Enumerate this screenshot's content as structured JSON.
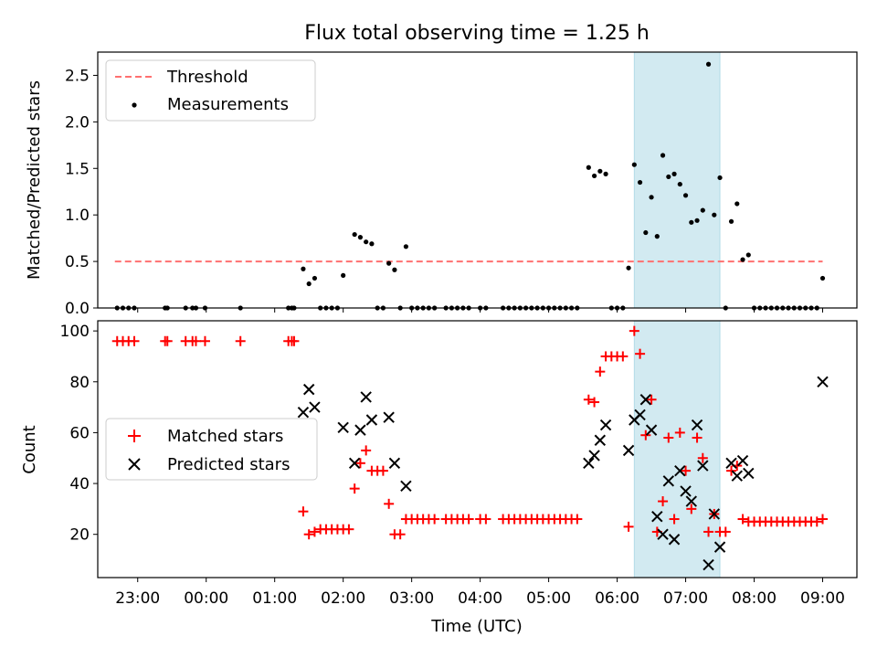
{
  "title": "Flux total observing time = 1.25 h",
  "xlabel": "Time (UTC)",
  "chart_data": [
    {
      "type": "scatter",
      "panel": "top",
      "ylabel": "Matched/Predicted stars",
      "ylim": [
        0,
        2.75
      ],
      "yticks": [
        0.0,
        0.5,
        1.0,
        1.5,
        2.0,
        2.5
      ],
      "ytick_labels": [
        "0.0",
        "0.5",
        "1.0",
        "1.5",
        "2.0",
        "2.5"
      ],
      "xlim": [
        "22:25",
        "09:30"
      ],
      "xticks": [
        "23:00",
        "00:00",
        "01:00",
        "02:00",
        "03:00",
        "04:00",
        "05:00",
        "06:00",
        "07:00",
        "08:00",
        "09:00"
      ],
      "shaded_span": [
        "06:15",
        "07:30"
      ],
      "legend_position": "upper-left",
      "threshold": {
        "name": "Threshold",
        "y": 0.5,
        "x_range": [
          "22:40",
          "09:00"
        ],
        "color": "#ff7070"
      },
      "measurements": {
        "name": "Measurements",
        "color": "#000000",
        "points": [
          [
            "22:42",
            0
          ],
          [
            "22:47",
            0
          ],
          [
            "22:52",
            0
          ],
          [
            "22:57",
            0
          ],
          [
            "23:24",
            0
          ],
          [
            "23:26",
            0
          ],
          [
            "23:42",
            0
          ],
          [
            "23:48",
            0
          ],
          [
            "23:51",
            0
          ],
          [
            "23:59",
            0
          ],
          [
            "00:30",
            0
          ],
          [
            "01:12",
            0
          ],
          [
            "01:15",
            0
          ],
          [
            "01:17",
            0
          ],
          [
            "01:25",
            0.42
          ],
          [
            "01:30",
            0.26
          ],
          [
            "01:35",
            0.32
          ],
          [
            "01:40",
            0
          ],
          [
            "01:45",
            0
          ],
          [
            "01:50",
            0
          ],
          [
            "01:55",
            0
          ],
          [
            "02:00",
            0.35
          ],
          [
            "02:10",
            0.79
          ],
          [
            "02:15",
            0.76
          ],
          [
            "02:20",
            0.71
          ],
          [
            "02:25",
            0.69
          ],
          [
            "02:30",
            0
          ],
          [
            "02:35",
            0
          ],
          [
            "02:40",
            0.48
          ],
          [
            "02:45",
            0.41
          ],
          [
            "02:50",
            0
          ],
          [
            "02:55",
            0.66
          ],
          [
            "03:00",
            0
          ],
          [
            "03:05",
            0
          ],
          [
            "03:10",
            0
          ],
          [
            "03:15",
            0
          ],
          [
            "03:20",
            0
          ],
          [
            "03:30",
            0
          ],
          [
            "03:35",
            0
          ],
          [
            "03:40",
            0
          ],
          [
            "03:45",
            0
          ],
          [
            "03:50",
            0
          ],
          [
            "04:00",
            0
          ],
          [
            "04:05",
            0
          ],
          [
            "04:20",
            0
          ],
          [
            "04:25",
            0
          ],
          [
            "04:30",
            0
          ],
          [
            "04:35",
            0
          ],
          [
            "04:40",
            0
          ],
          [
            "04:45",
            0
          ],
          [
            "04:50",
            0
          ],
          [
            "04:55",
            0
          ],
          [
            "05:00",
            0
          ],
          [
            "05:05",
            0
          ],
          [
            "05:10",
            0
          ],
          [
            "05:15",
            0
          ],
          [
            "05:20",
            0
          ],
          [
            "05:25",
            0
          ],
          [
            "05:35",
            1.51
          ],
          [
            "05:40",
            1.42
          ],
          [
            "05:45",
            1.47
          ],
          [
            "05:50",
            1.44
          ],
          [
            "05:55",
            0
          ],
          [
            "06:00",
            0
          ],
          [
            "06:05",
            0
          ],
          [
            "06:10",
            0.43
          ],
          [
            "06:15",
            1.54
          ],
          [
            "06:20",
            1.35
          ],
          [
            "06:25",
            0.81
          ],
          [
            "06:30",
            1.19
          ],
          [
            "06:35",
            0.77
          ],
          [
            "06:40",
            1.64
          ],
          [
            "06:45",
            1.41
          ],
          [
            "06:50",
            1.44
          ],
          [
            "06:55",
            1.33
          ],
          [
            "07:00",
            1.21
          ],
          [
            "07:05",
            0.92
          ],
          [
            "07:10",
            0.94
          ],
          [
            "07:15",
            1.05
          ],
          [
            "07:20",
            2.62
          ],
          [
            "07:25",
            1.0
          ],
          [
            "07:30",
            1.4
          ],
          [
            "07:35",
            0
          ],
          [
            "07:40",
            0.93
          ],
          [
            "07:45",
            1.12
          ],
          [
            "07:50",
            0.52
          ],
          [
            "07:55",
            0.57
          ],
          [
            "08:00",
            0
          ],
          [
            "08:05",
            0
          ],
          [
            "08:10",
            0
          ],
          [
            "08:15",
            0
          ],
          [
            "08:20",
            0
          ],
          [
            "08:25",
            0
          ],
          [
            "08:30",
            0
          ],
          [
            "08:35",
            0
          ],
          [
            "08:40",
            0
          ],
          [
            "08:45",
            0
          ],
          [
            "08:50",
            0
          ],
          [
            "08:55",
            0
          ],
          [
            "09:00",
            0.32
          ]
        ]
      }
    },
    {
      "type": "scatter",
      "panel": "bottom",
      "ylabel": "Count",
      "ylim": [
        3,
        104
      ],
      "yticks": [
        20,
        40,
        60,
        80,
        100
      ],
      "ytick_labels": [
        "20",
        "40",
        "60",
        "80",
        "100"
      ],
      "xlim": [
        "22:25",
        "09:30"
      ],
      "xticks": [
        "23:00",
        "00:00",
        "01:00",
        "02:00",
        "03:00",
        "04:00",
        "05:00",
        "06:00",
        "07:00",
        "08:00",
        "09:00"
      ],
      "xtick_labels": [
        "23:00",
        "00:00",
        "01:00",
        "02:00",
        "03:00",
        "04:00",
        "05:00",
        "06:00",
        "07:00",
        "08:00",
        "09:00"
      ],
      "shaded_span": [
        "06:15",
        "07:30"
      ],
      "legend_position": "center-left",
      "series": [
        {
          "name": "Matched stars",
          "marker": "plus",
          "color": "#ff0000",
          "points": [
            [
              "22:42",
              96
            ],
            [
              "22:47",
              96
            ],
            [
              "22:52",
              96
            ],
            [
              "22:57",
              96
            ],
            [
              "23:24",
              96
            ],
            [
              "23:26",
              96
            ],
            [
              "23:42",
              96
            ],
            [
              "23:48",
              96
            ],
            [
              "23:51",
              96
            ],
            [
              "23:59",
              96
            ],
            [
              "00:30",
              96
            ],
            [
              "01:12",
              96
            ],
            [
              "01:15",
              96
            ],
            [
              "01:17",
              96
            ],
            [
              "01:25",
              29
            ],
            [
              "01:30",
              20
            ],
            [
              "01:35",
              21
            ],
            [
              "01:40",
              22
            ],
            [
              "01:45",
              22
            ],
            [
              "01:50",
              22
            ],
            [
              "01:55",
              22
            ],
            [
              "02:00",
              22
            ],
            [
              "02:05",
              22
            ],
            [
              "02:10",
              38
            ],
            [
              "02:15",
              48
            ],
            [
              "02:20",
              53
            ],
            [
              "02:25",
              45
            ],
            [
              "02:30",
              45
            ],
            [
              "02:35",
              45
            ],
            [
              "02:40",
              32
            ],
            [
              "02:45",
              20
            ],
            [
              "02:50",
              20
            ],
            [
              "02:55",
              26
            ],
            [
              "03:00",
              26
            ],
            [
              "03:05",
              26
            ],
            [
              "03:10",
              26
            ],
            [
              "03:15",
              26
            ],
            [
              "03:20",
              26
            ],
            [
              "03:30",
              26
            ],
            [
              "03:35",
              26
            ],
            [
              "03:40",
              26
            ],
            [
              "03:45",
              26
            ],
            [
              "03:50",
              26
            ],
            [
              "04:00",
              26
            ],
            [
              "04:05",
              26
            ],
            [
              "04:20",
              26
            ],
            [
              "04:25",
              26
            ],
            [
              "04:30",
              26
            ],
            [
              "04:35",
              26
            ],
            [
              "04:40",
              26
            ],
            [
              "04:45",
              26
            ],
            [
              "04:50",
              26
            ],
            [
              "04:55",
              26
            ],
            [
              "05:00",
              26
            ],
            [
              "05:05",
              26
            ],
            [
              "05:10",
              26
            ],
            [
              "05:15",
              26
            ],
            [
              "05:20",
              26
            ],
            [
              "05:25",
              26
            ],
            [
              "05:35",
              73
            ],
            [
              "05:40",
              72
            ],
            [
              "05:45",
              84
            ],
            [
              "05:50",
              90
            ],
            [
              "05:55",
              90
            ],
            [
              "06:00",
              90
            ],
            [
              "06:05",
              90
            ],
            [
              "06:10",
              23
            ],
            [
              "06:15",
              100
            ],
            [
              "06:20",
              91
            ],
            [
              "06:25",
              59
            ],
            [
              "06:30",
              73
            ],
            [
              "06:35",
              21
            ],
            [
              "06:40",
              33
            ],
            [
              "06:45",
              58
            ],
            [
              "06:50",
              26
            ],
            [
              "06:55",
              60
            ],
            [
              "07:00",
              45
            ],
            [
              "07:05",
              30
            ],
            [
              "07:10",
              58
            ],
            [
              "07:15",
              50
            ],
            [
              "07:20",
              21
            ],
            [
              "07:25",
              28
            ],
            [
              "07:30",
              21
            ],
            [
              "07:35",
              21
            ],
            [
              "07:40",
              45
            ],
            [
              "07:45",
              47
            ],
            [
              "07:50",
              26
            ],
            [
              "07:55",
              25
            ],
            [
              "08:00",
              25
            ],
            [
              "08:05",
              25
            ],
            [
              "08:10",
              25
            ],
            [
              "08:15",
              25
            ],
            [
              "08:20",
              25
            ],
            [
              "08:25",
              25
            ],
            [
              "08:30",
              25
            ],
            [
              "08:35",
              25
            ],
            [
              "08:40",
              25
            ],
            [
              "08:45",
              25
            ],
            [
              "08:50",
              25
            ],
            [
              "08:55",
              25
            ],
            [
              "09:00",
              26
            ]
          ]
        },
        {
          "name": "Predicted stars",
          "marker": "x",
          "color": "#000000",
          "points": [
            [
              "01:25",
              68
            ],
            [
              "01:30",
              77
            ],
            [
              "01:35",
              70
            ],
            [
              "02:00",
              62
            ],
            [
              "02:10",
              48
            ],
            [
              "02:15",
              61
            ],
            [
              "02:20",
              74
            ],
            [
              "02:25",
              65
            ],
            [
              "02:40",
              66
            ],
            [
              "02:45",
              48
            ],
            [
              "02:55",
              39
            ],
            [
              "05:35",
              48
            ],
            [
              "05:40",
              51
            ],
            [
              "05:45",
              57
            ],
            [
              "05:50",
              63
            ],
            [
              "06:10",
              53
            ],
            [
              "06:15",
              65
            ],
            [
              "06:20",
              67
            ],
            [
              "06:25",
              73
            ],
            [
              "06:30",
              61
            ],
            [
              "06:35",
              27
            ],
            [
              "06:40",
              20
            ],
            [
              "06:45",
              41
            ],
            [
              "06:50",
              18
            ],
            [
              "06:55",
              45
            ],
            [
              "07:00",
              37
            ],
            [
              "07:05",
              33
            ],
            [
              "07:10",
              63
            ],
            [
              "07:15",
              47
            ],
            [
              "07:20",
              8
            ],
            [
              "07:25",
              28
            ],
            [
              "07:30",
              15
            ],
            [
              "07:40",
              48
            ],
            [
              "07:45",
              43
            ],
            [
              "07:50",
              49
            ],
            [
              "07:55",
              44
            ],
            [
              "09:00",
              80
            ]
          ]
        }
      ]
    }
  ]
}
